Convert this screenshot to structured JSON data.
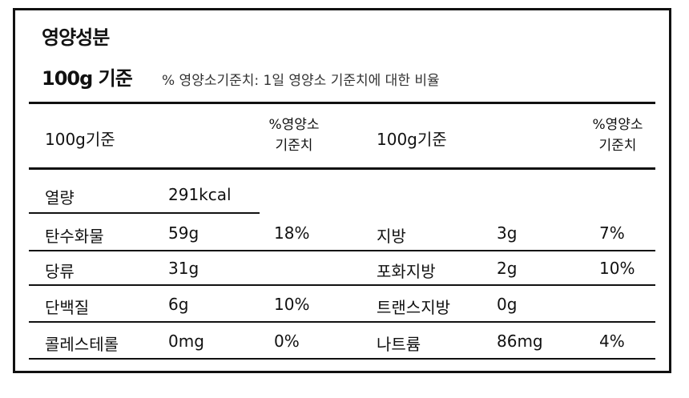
{
  "panel": {
    "title": "영양성분",
    "basis": "100g 기준",
    "note": "% 영양소기준치: 1일 영양소 기준치에 대한 비율"
  },
  "header": {
    "left_basis": "100g기준",
    "left_pct_line1": "%영양소",
    "left_pct_line2": "기준치",
    "right_basis": "100g기준",
    "right_pct_line1": "%영양소",
    "right_pct_line2": "기준치"
  },
  "left_rows": [
    {
      "name": "열량",
      "amount": "291kcal",
      "pct": ""
    },
    {
      "name": "탄수화물",
      "amount": "59g",
      "pct": "18%"
    },
    {
      "name": "당류",
      "amount": "31g",
      "pct": ""
    },
    {
      "name": "단백질",
      "amount": "6g",
      "pct": "10%"
    },
    {
      "name": "콜레스테롤",
      "amount": "0mg",
      "pct": "0%"
    }
  ],
  "right_rows": [
    {
      "name": "지방",
      "amount": "3g",
      "pct": "7%"
    },
    {
      "name": "포화지방",
      "amount": "2g",
      "pct": "10%"
    },
    {
      "name": "트랜스지방",
      "amount": "0g",
      "pct": ""
    },
    {
      "name": "나트륨",
      "amount": "86mg",
      "pct": "4%"
    }
  ]
}
